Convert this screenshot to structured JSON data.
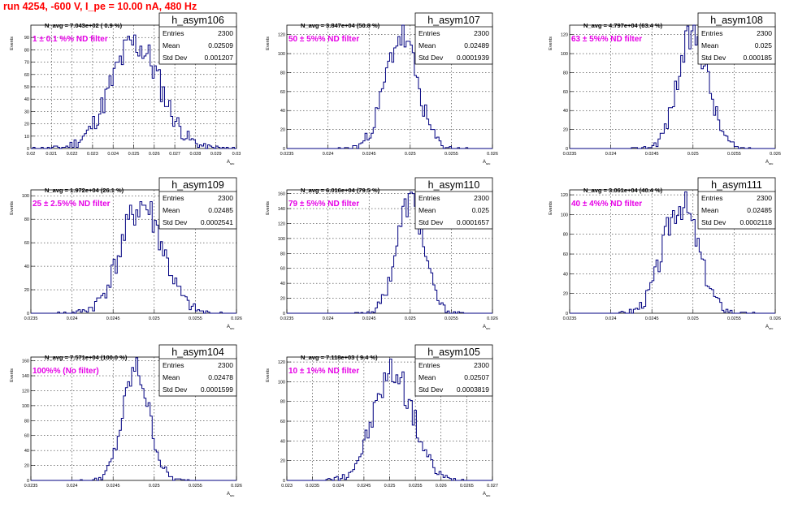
{
  "header": {
    "run_title": "run 4254,  -600 V, I_pe = 10.00 nA, 480 Hz"
  },
  "colors": {
    "histogram": "#000080",
    "filter_label": "#e600e6",
    "run_title": "#ff0000",
    "grid": "#000000"
  },
  "axis_titles": {
    "x": "A_src",
    "y": "Events"
  },
  "stats_labels": {
    "entries": "Entries",
    "mean": "Mean",
    "std": "Std Dev"
  },
  "chart_data": [
    {
      "type": "bar",
      "name": "h_asym106",
      "navg": "N_avg = 7.043e+02 ( 0.9 %)",
      "filter": "1 ± 0.1 %% ND filter",
      "entries": "2300",
      "mean": "0.02509",
      "std": "0.001207",
      "xlim": [
        0.02,
        0.03
      ],
      "ylim": [
        0,
        100
      ],
      "xticks": [
        "0.02",
        "0.021",
        "0.022",
        "0.023",
        "0.024",
        "0.025",
        "0.026",
        "0.027",
        "0.028",
        "0.029",
        "0.03"
      ],
      "yticks": [
        "0",
        "10",
        "20",
        "30",
        "40",
        "50",
        "60",
        "70",
        "80",
        "90"
      ],
      "mu": 0.02509,
      "sigma": 0.001207,
      "peak": 85,
      "seed": 11
    },
    {
      "type": "bar",
      "name": "h_asym107",
      "navg": "N_avg = 3.847e+04 (50.8 %)",
      "filter": "50 ± 5%% ND filter",
      "entries": "2300",
      "mean": "0.02489",
      "std": "0.0001939",
      "xlim": [
        0.0235,
        0.026
      ],
      "ylim": [
        0,
        130
      ],
      "xticks": [
        "0.0235",
        "0.024",
        "0.0245",
        "0.025",
        "0.0255",
        "0.026"
      ],
      "yticks": [
        "0",
        "20",
        "40",
        "60",
        "80",
        "100",
        "120"
      ],
      "mu": 0.02489,
      "sigma": 0.0001939,
      "peak": 118,
      "seed": 23
    },
    {
      "type": "bar",
      "name": "h_asym108",
      "navg": "N_avg = 4.797e+04 (63.4 %)",
      "filter": "63 ± 5%% ND filter",
      "entries": "2300",
      "mean": "0.025",
      "std": "0.000185",
      "xlim": [
        0.0235,
        0.026
      ],
      "ylim": [
        0,
        130
      ],
      "xticks": [
        "0.0235",
        "0.024",
        "0.0245",
        "0.025",
        "0.0255",
        "0.026"
      ],
      "yticks": [
        "0",
        "20",
        "40",
        "60",
        "80",
        "100",
        "120"
      ],
      "mu": 0.025,
      "sigma": 0.000185,
      "peak": 120,
      "seed": 37
    },
    {
      "type": "bar",
      "name": "h_asym109",
      "navg": "N_avg = 1.972e+04 (26.1 %)",
      "filter": "25 ± 2.5%% ND filter",
      "entries": "2300",
      "mean": "0.02485",
      "std": "0.0002541",
      "xlim": [
        0.0235,
        0.026
      ],
      "ylim": [
        0,
        105
      ],
      "xticks": [
        "0.0235",
        "0.024",
        "0.0245",
        "0.025",
        "0.0255",
        "0.026"
      ],
      "yticks": [
        "0",
        "20",
        "40",
        "60",
        "80",
        "100"
      ],
      "mu": 0.02485,
      "sigma": 0.0002541,
      "peak": 92,
      "seed": 41
    },
    {
      "type": "bar",
      "name": "h_asym110",
      "navg": "N_avg = 6.016e+04 (79.5 %)",
      "filter": "79 ± 5%% ND filter",
      "entries": "2300",
      "mean": "0.025",
      "std": "0.0001657",
      "xlim": [
        0.0235,
        0.026
      ],
      "ylim": [
        0,
        165
      ],
      "xticks": [
        "0.0235",
        "0.024",
        "0.0245",
        "0.025",
        "0.0255",
        "0.026"
      ],
      "yticks": [
        "0",
        "20",
        "40",
        "60",
        "80",
        "100",
        "120",
        "140",
        "160"
      ],
      "mu": 0.025,
      "sigma": 0.0001657,
      "peak": 150,
      "seed": 53
    },
    {
      "type": "bar",
      "name": "h_asym111",
      "navg": "N_avg = 3.061e+04 (40.4 %)",
      "filter": "40 ± 4%% ND filter",
      "entries": "2300",
      "mean": "0.02485",
      "std": "0.0002118",
      "xlim": [
        0.0235,
        0.026
      ],
      "ylim": [
        0,
        125
      ],
      "xticks": [
        "0.0235",
        "0.024",
        "0.0245",
        "0.025",
        "0.0255",
        "0.026"
      ],
      "yticks": [
        "0",
        "20",
        "40",
        "60",
        "80",
        "100",
        "120"
      ],
      "mu": 0.02485,
      "sigma": 0.0002118,
      "peak": 112,
      "seed": 67
    },
    {
      "type": "bar",
      "name": "h_asym104",
      "navg": "N_avg = 7.571e+04 (100.0 %)",
      "filter": "100%% (No filter)",
      "entries": "2300",
      "mean": "0.02478",
      "std": "0.0001599",
      "xlim": [
        0.0235,
        0.026
      ],
      "ylim": [
        0,
        165
      ],
      "xticks": [
        "0.0235",
        "0.024",
        "0.0245",
        "0.025",
        "0.0255",
        "0.026"
      ],
      "yticks": [
        "0",
        "20",
        "40",
        "60",
        "80",
        "100",
        "120",
        "140",
        "160"
      ],
      "mu": 0.02478,
      "sigma": 0.0001599,
      "peak": 148,
      "seed": 79
    },
    {
      "type": "bar",
      "name": "h_asym105",
      "navg": "N_avg = 7.118e+03 ( 9.4 %)",
      "filter": "10 ± 1%% ND filter",
      "entries": "2300",
      "mean": "0.02507",
      "std": "0.0003819",
      "xlim": [
        0.023,
        0.027
      ],
      "ylim": [
        0,
        125
      ],
      "xticks": [
        "0.023",
        "0.0235",
        "0.024",
        "0.0245",
        "0.025",
        "0.0255",
        "0.026",
        "0.0265",
        "0.027"
      ],
      "yticks": [
        "0",
        "20",
        "40",
        "60",
        "80",
        "100",
        "120"
      ],
      "mu": 0.02507,
      "sigma": 0.0003819,
      "peak": 110,
      "seed": 97
    }
  ]
}
